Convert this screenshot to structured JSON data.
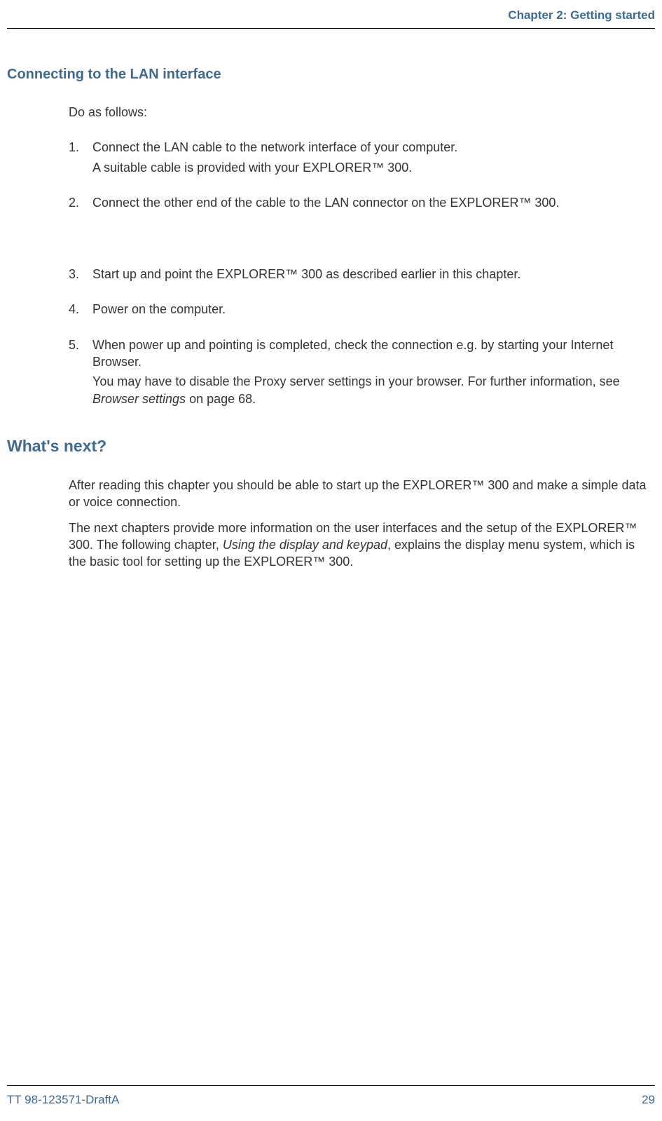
{
  "header": {
    "chapter": "Chapter 2: Getting started"
  },
  "section1": {
    "heading": "Connecting to the LAN interface",
    "intro": "Do as follows:",
    "steps": [
      {
        "main": "Connect the LAN cable to the network interface of your computer.",
        "sub": "A suitable cable is provided with your EXPLORER™ 300."
      },
      {
        "main": "Connect the other end of the cable to the LAN connector on the EXPLORER™ 300."
      },
      {
        "main": "Start up and point the EXPLORER™ 300 as described earlier in this chapter."
      },
      {
        "main": "Power on the computer."
      },
      {
        "main": "When power up and pointing is completed, check the connection e.g. by starting your Internet Browser.",
        "sub_prefix": "You may have to disable the Proxy server settings in your browser. For further information, see ",
        "sub_italic": "Browser settings",
        "sub_suffix": " on page 68."
      }
    ]
  },
  "section2": {
    "heading": "What's next?",
    "para1": "After reading this chapter you should be able to start up the EXPLORER™ 300 and make a simple data or voice connection.",
    "para2_prefix": "The next chapters provide more information on the user interfaces and the setup of the EXPLORER™ 300. The following chapter, ",
    "para2_italic": "Using the display and keypad",
    "para2_suffix": ", explains the display menu system, which is the basic tool for setting up the EXPLORER™ 300."
  },
  "footer": {
    "doc_id": "TT 98-123571-DraftA",
    "page_num": "29"
  },
  "colors": {
    "accent": "#3d6a8f",
    "text": "#333333",
    "rule": "#000000",
    "background": "#ffffff"
  },
  "typography": {
    "heading_fontsize": 20,
    "heading_large_fontsize": 23,
    "body_fontsize": 18,
    "header_footer_fontsize": 17
  }
}
